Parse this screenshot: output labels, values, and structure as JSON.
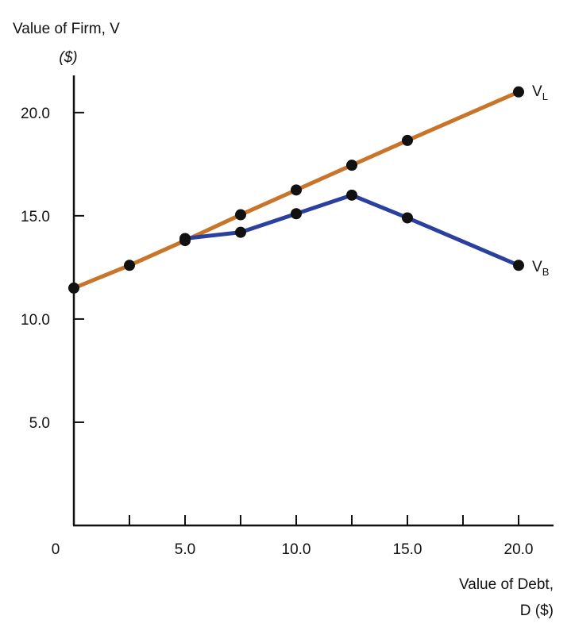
{
  "chart_data": {
    "type": "line",
    "title": "",
    "ylabel_line1": "Value of Firm, V",
    "ylabel_line2": "($)",
    "xlabel_line1": "Value of Debt,",
    "xlabel_line2": "D ($)",
    "xlim": [
      0,
      21.25
    ],
    "ylim": [
      0,
      21.8
    ],
    "origin_label": "0",
    "x_ticks": [
      2.5,
      5,
      7.5,
      10,
      12.5,
      15,
      17.5,
      20
    ],
    "x_tick_labels": [
      {
        "value": 5,
        "label": "5.0"
      },
      {
        "value": 10,
        "label": "10.0"
      },
      {
        "value": 15,
        "label": "15.0"
      },
      {
        "value": 20,
        "label": "20.0"
      }
    ],
    "y_tick_labels": [
      {
        "value": 5,
        "label": "5.0"
      },
      {
        "value": 10,
        "label": "10.0"
      },
      {
        "value": 15,
        "label": "15.0"
      },
      {
        "value": 20,
        "label": "20.0"
      }
    ],
    "grid": false,
    "series": [
      {
        "name": "V_L",
        "label_main": "V",
        "label_sub": "L",
        "color": "#c8742a",
        "x": [
          0,
          2.5,
          5,
          7.5,
          10,
          12.5,
          15,
          20
        ],
        "y": [
          11.5,
          12.6,
          13.8,
          15.05,
          16.25,
          17.45,
          18.65,
          21.0
        ]
      },
      {
        "name": "V_B",
        "label_main": "V",
        "label_sub": "B",
        "color": "#2b3f9e",
        "x": [
          5,
          7.5,
          10,
          12.5,
          15,
          20
        ],
        "y": [
          13.9,
          14.2,
          15.1,
          16.0,
          14.9,
          12.6
        ]
      }
    ]
  }
}
